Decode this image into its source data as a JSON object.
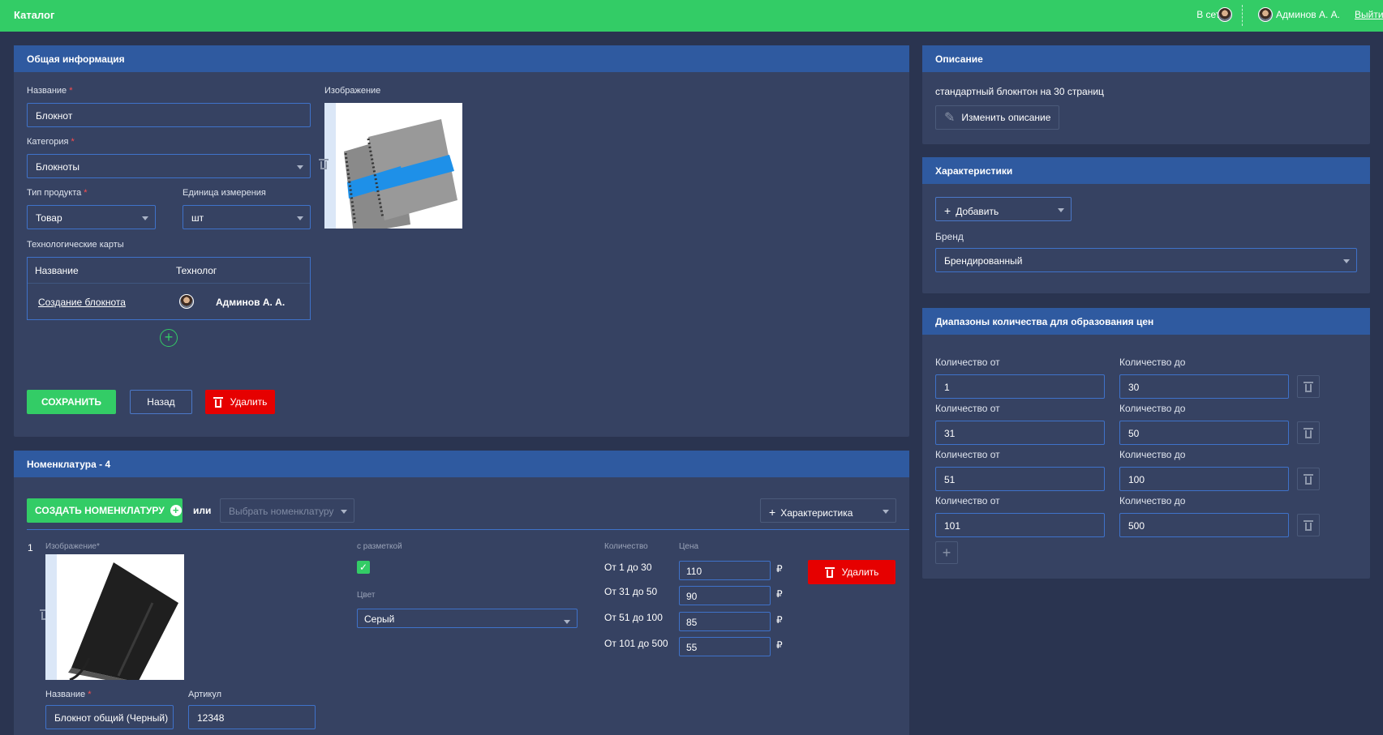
{
  "topbar": {
    "title": "Каталог",
    "online_label": "В сети",
    "user_name": "Админов А. А.",
    "logout_label": "Выйти"
  },
  "general": {
    "header": "Общая информация",
    "name_label": "Название",
    "name_value": "Блокнот",
    "category_label": "Категория",
    "category_value": "Блокноты",
    "product_type_label": "Тип продукта",
    "product_type_value": "Товар",
    "unit_label": "Единица измерения",
    "unit_value": "шт",
    "image_label": "Изображение",
    "tech_cards_label": "Технологические карты",
    "tech_table": {
      "col_name": "Название",
      "col_tech": "Технолог",
      "rows": [
        {
          "name": "Создание блокнота",
          "technologist": "Админов А. А."
        }
      ]
    },
    "save_label": "СОХРАНИТЬ",
    "back_label": "Назад",
    "delete_label": "Удалить"
  },
  "description": {
    "header": "Описание",
    "text": "стандартный блокнтон на 30 страниц",
    "edit_label": "Изменить описание"
  },
  "characteristics": {
    "header": "Характеристики",
    "add_label": "Добавить",
    "brand_label": "Бренд",
    "brand_value": "Брендированный"
  },
  "ranges": {
    "header": "Диапазоны количества для образования цен",
    "from_label": "Количество от",
    "to_label": "Количество до",
    "rows": [
      {
        "from": "1",
        "to": "30"
      },
      {
        "from": "31",
        "to": "50"
      },
      {
        "from": "51",
        "to": "100"
      },
      {
        "from": "101",
        "to": "500"
      }
    ]
  },
  "nomenclature": {
    "header": "Номенклатура - 4",
    "create_label": "СОЗДАТЬ НОМЕНКЛАТУРУ",
    "or_label": "или",
    "select_placeholder": "Выбрать номенклатуру",
    "characteristic_label": "Характеристика",
    "item": {
      "index": "1",
      "image_label": "Изображение*",
      "markup_label": "с разметкой",
      "color_label": "Цвет",
      "color_value": "Серый",
      "qty_label": "Количество",
      "price_label": "Цена",
      "price_rows": [
        {
          "range": "От 1 до 30",
          "price": "110",
          "currency": "₽"
        },
        {
          "range": "От 31 до 50",
          "price": "90",
          "currency": "₽"
        },
        {
          "range": "От 51 до 100",
          "price": "85",
          "currency": "₽"
        },
        {
          "range": "От 101 до 500",
          "price": "55",
          "currency": "₽"
        }
      ],
      "delete_label": "Удалить",
      "name_label": "Название",
      "name_value": "Блокнот общий (Черный)",
      "article_label": "Артикул",
      "article_value": "12348"
    }
  },
  "colors": {
    "topbar": "#33cc66",
    "header": "#2f5aa0",
    "card": "#364262",
    "danger": "#e60000"
  }
}
